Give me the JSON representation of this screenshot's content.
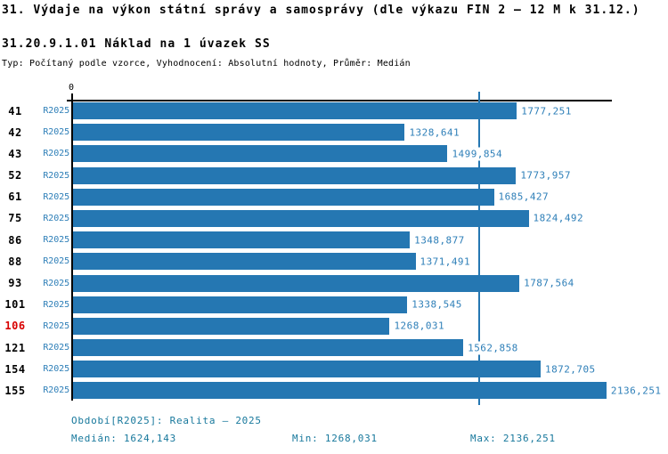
{
  "header": {
    "title": "31. Výdaje na výkon státní správy a samosprávy (dle výkazu FIN 2 – 12 M k 31.12.)",
    "subtitle": "31.20.9.1.01 Náklad na 1 úvazek SS",
    "meta": "Typ: Počítaný podle vzorce, Vyhodnocení: Absolutní hodnoty, Průměr: Medián"
  },
  "chart_data": {
    "type": "bar",
    "orientation": "horizontal",
    "title": "31.20.9.1.01 Náklad na 1 úvazek SS",
    "categories": [
      "41",
      "42",
      "43",
      "52",
      "61",
      "75",
      "86",
      "88",
      "93",
      "101",
      "106",
      "121",
      "154",
      "155"
    ],
    "series": [
      {
        "name": "R2025",
        "values": [
          1777.251,
          1328.641,
          1499.854,
          1773.957,
          1685.427,
          1824.492,
          1348.877,
          1371.491,
          1787.564,
          1338.545,
          1268.031,
          1562.858,
          1872.705,
          2136.251
        ]
      }
    ],
    "value_labels": [
      "1777,251",
      "1328,641",
      "1499,854",
      "1773,957",
      "1685,427",
      "1824,492",
      "1348,877",
      "1371,491",
      "1787,564",
      "1338,545",
      "1268,031",
      "1562,858",
      "1872,705",
      "2136,251"
    ],
    "highlight_category": "106",
    "highlight_color": "#d80000",
    "bar_color": "#2577b2",
    "text_color": "#2e7fb8",
    "median_value": 1624.143,
    "min_value": 1268.031,
    "max_value": 2136.251,
    "xlabel": "",
    "ylabel": "",
    "xmin": 0,
    "xmax": 2158,
    "x_zero_tick_label": "0",
    "grid": false,
    "legend": false
  },
  "footer": {
    "accent_color": "#17789c",
    "period": "Období[R2025]: Realita – 2025",
    "median": "Medián: 1624,143",
    "min": "Min: 1268,031",
    "max": "Max: 2136,251"
  }
}
